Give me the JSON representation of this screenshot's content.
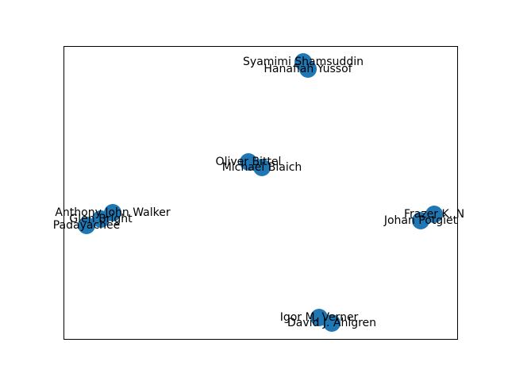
{
  "graph": {
    "node_color": "#1f77b4",
    "nodes": [
      {
        "id": "syamimi",
        "label": "Syamimi Shamsuddin"
      },
      {
        "id": "hanafiah",
        "label": "Hanafiah Yussof"
      },
      {
        "id": "oliver",
        "label": "Oliver Bittel"
      },
      {
        "id": "michael",
        "label": "Michael Blaich"
      },
      {
        "id": "anthony",
        "label": "Anthony John Walker"
      },
      {
        "id": "glen",
        "label": "Glen Bright"
      },
      {
        "id": "padayachee",
        "label": "Padayachee"
      },
      {
        "id": "frazer",
        "label": "Frazer K. N"
      },
      {
        "id": "johan",
        "label": "Johan Potgiet"
      },
      {
        "id": "igor",
        "label": "Igor M. Verner"
      },
      {
        "id": "david",
        "label": "David J. Ahlgren"
      }
    ],
    "edges": [
      [
        "syamimi",
        "hanafiah"
      ],
      [
        "oliver",
        "michael"
      ],
      [
        "anthony",
        "glen"
      ],
      [
        "glen",
        "padayachee"
      ],
      [
        "frazer",
        "johan"
      ],
      [
        "igor",
        "david"
      ]
    ]
  }
}
